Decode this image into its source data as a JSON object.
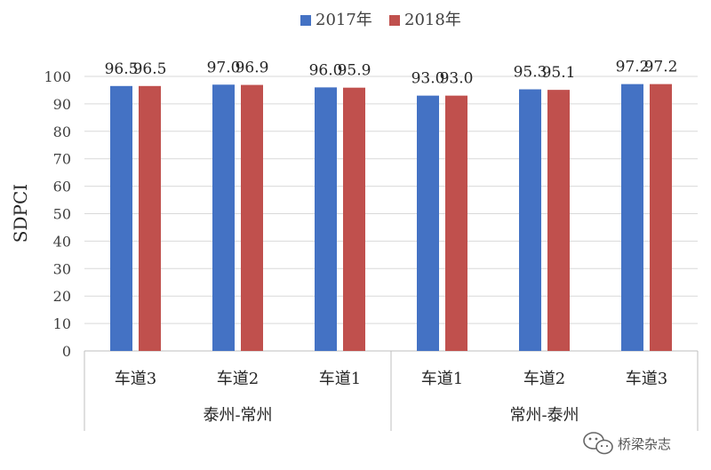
{
  "chart_data": {
    "type": "bar",
    "groups": [
      {
        "name": "泰州-常州",
        "categories": [
          "车道3",
          "车道2",
          "车道1"
        ]
      },
      {
        "name": "常州-泰州",
        "categories": [
          "车道1",
          "车道2",
          "车道3"
        ]
      }
    ],
    "categories": [
      "车道3",
      "车道2",
      "车道1",
      "车道1",
      "车道2",
      "车道3"
    ],
    "series": [
      {
        "name": "2017年",
        "color": "#4472c4",
        "values": [
          96.5,
          97.0,
          96.0,
          93.0,
          95.3,
          97.2
        ]
      },
      {
        "name": "2018年",
        "color": "#c0504d",
        "values": [
          96.5,
          96.9,
          95.9,
          93.0,
          95.1,
          97.2
        ]
      }
    ],
    "data_labels": [
      [
        "96.5",
        "97.0",
        "96.0",
        "93.0",
        "95.3",
        "97.2"
      ],
      [
        "96.5",
        "96.9",
        "95.9",
        "93.0",
        "95.1",
        "97.2"
      ]
    ],
    "xlabel": "",
    "ylabel": "SDPCI",
    "ylim": [
      0,
      100
    ],
    "yticks": [
      "0",
      "10",
      "20",
      "30",
      "40",
      "50",
      "60",
      "70",
      "80",
      "90",
      "100"
    ],
    "grid": true,
    "legend_position": "top-center"
  },
  "watermark": {
    "text": "桥梁杂志",
    "icon": "wechat-icon"
  }
}
